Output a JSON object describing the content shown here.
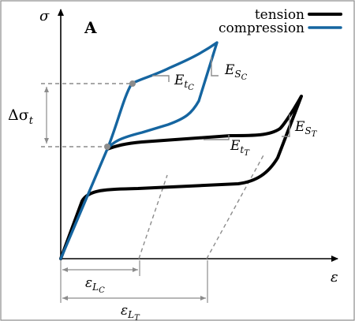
{
  "panel_label": "A",
  "axes": {
    "x_label": "ε",
    "y_label": "σ"
  },
  "legend": [
    {
      "name": "tension",
      "color": "#000000",
      "icon": "black-line"
    },
    {
      "name": "compression",
      "color": "#1565a0",
      "icon": "blue-line"
    }
  ],
  "labels": {
    "delta_sigma": {
      "base": "Δσ",
      "sub": "t"
    },
    "e_tc": {
      "base": "E",
      "sub": "t",
      "subsub": "C"
    },
    "e_sc": {
      "base": "E",
      "sub": "S",
      "subsub": "C"
    },
    "e_tt": {
      "base": "E",
      "sub": "t",
      "subsub": "T"
    },
    "e_st": {
      "base": "E",
      "sub": "S",
      "subsub": "T"
    },
    "eps_lc": {
      "base": "ε",
      "sub": "L",
      "subsub": "C"
    },
    "eps_lt": {
      "base": "ε",
      "sub": "L",
      "subsub": "T"
    }
  },
  "colors": {
    "tension": "#000000",
    "compression": "#1565a0",
    "annotation": "#8c8c8c"
  }
}
